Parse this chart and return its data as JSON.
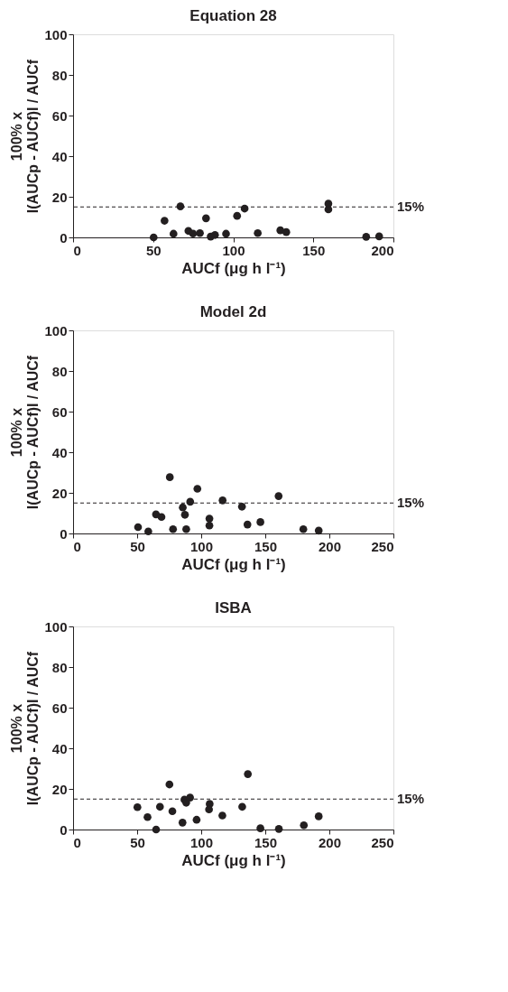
{
  "chart_data": [
    {
      "type": "scatter",
      "title": "Equation 28",
      "xlabel": "AUCf (μg h l⁻¹)",
      "ylabel": "100% x\nI(AUCp - AUCf)I / AUCf",
      "marker": "circle",
      "grid": false,
      "legend": false,
      "x": [
        50.3,
        57.1,
        62.7,
        67.0,
        72.0,
        74.9,
        79.2,
        83.0,
        85.9,
        88.6,
        95.5,
        102.4,
        107.1,
        115.3,
        129.4,
        133.1,
        159.4,
        159.4,
        183.0,
        191.1
      ],
      "series": [
        {
          "color": "#231f20",
          "values": [
            0,
            8.2,
            1.8,
            15.3,
            3.2,
            1.9,
            2.1,
            9.4,
            0.4,
            1.2,
            1.8,
            10.6,
            14.2,
            2.1,
            3.5,
            2.6,
            16.6,
            13.8,
            0.3,
            0.5
          ]
        }
      ],
      "xlim": [
        0,
        200
      ],
      "xticks": [
        0,
        50,
        100,
        150,
        200
      ],
      "ylim": [
        0,
        100
      ],
      "yticks": [
        0,
        20,
        40,
        60,
        80,
        100
      ],
      "ref_lines": [
        {
          "axis": "y",
          "value": 15,
          "label": "15%",
          "line_style": "dashed",
          "color": "#231f20"
        }
      ]
    },
    {
      "type": "scatter",
      "title": "Model 2d",
      "xlabel": "AUCf (μg h l⁻¹)",
      "ylabel": "100% x\nI(AUCp - AUCf)I / AUCf",
      "marker": "circle",
      "grid": false,
      "legend": false,
      "x": [
        50.7,
        58.7,
        64.7,
        69.0,
        75.5,
        78.0,
        85.6,
        87.3,
        88.3,
        91.4,
        97.0,
        106.4,
        106.4,
        116.7,
        131.8,
        136.1,
        146.2,
        160.4,
        179.7,
        191.7
      ],
      "series": [
        {
          "color": "#231f20",
          "values": [
            3.1,
            1.0,
            9.4,
            8.1,
            27.7,
            2.1,
            12.8,
            9.2,
            2.1,
            15.6,
            22.0,
            7.3,
            3.9,
            16.3,
            13.2,
            4.4,
            5.6,
            18.4,
            2.1,
            1.4
          ]
        }
      ],
      "xlim": [
        0,
        250
      ],
      "xticks": [
        0,
        50,
        100,
        150,
        200,
        250
      ],
      "ylim": [
        0,
        100
      ],
      "yticks": [
        0,
        20,
        40,
        60,
        80,
        100
      ],
      "ref_lines": [
        {
          "axis": "y",
          "value": 15,
          "label": "15%",
          "line_style": "dashed",
          "color": "#231f20"
        }
      ]
    },
    {
      "type": "scatter",
      "title": "ISBA",
      "xlabel": "AUCf (μg h l⁻¹)",
      "ylabel": "100% x\nI(AUCp - AUCf)I / AUCf",
      "marker": "circle",
      "grid": false,
      "legend": false,
      "x": [
        50.2,
        58.1,
        64.8,
        67.8,
        75.2,
        77.5,
        85.4,
        86.9,
        88.3,
        91.3,
        96.4,
        106.6,
        106.1,
        116.5,
        132.0,
        136.4,
        146.2,
        160.6,
        180.1,
        191.7
      ],
      "series": [
        {
          "color": "#231f20",
          "values": [
            11.0,
            6.1,
            0,
            11.2,
            22.2,
            9.0,
            3.4,
            14.7,
            13.2,
            15.7,
            4.8,
            12.6,
            9.9,
            6.9,
            11.2,
            27.3,
            0.6,
            0.3,
            2.1,
            6.5
          ]
        }
      ],
      "xlim": [
        0,
        250
      ],
      "xticks": [
        0,
        50,
        100,
        150,
        200,
        250
      ],
      "ylim": [
        0,
        100
      ],
      "yticks": [
        0,
        20,
        40,
        60,
        80,
        100
      ],
      "ref_lines": [
        {
          "axis": "y",
          "value": 15,
          "label": "15%",
          "line_style": "dashed",
          "color": "#231f20"
        }
      ]
    }
  ]
}
